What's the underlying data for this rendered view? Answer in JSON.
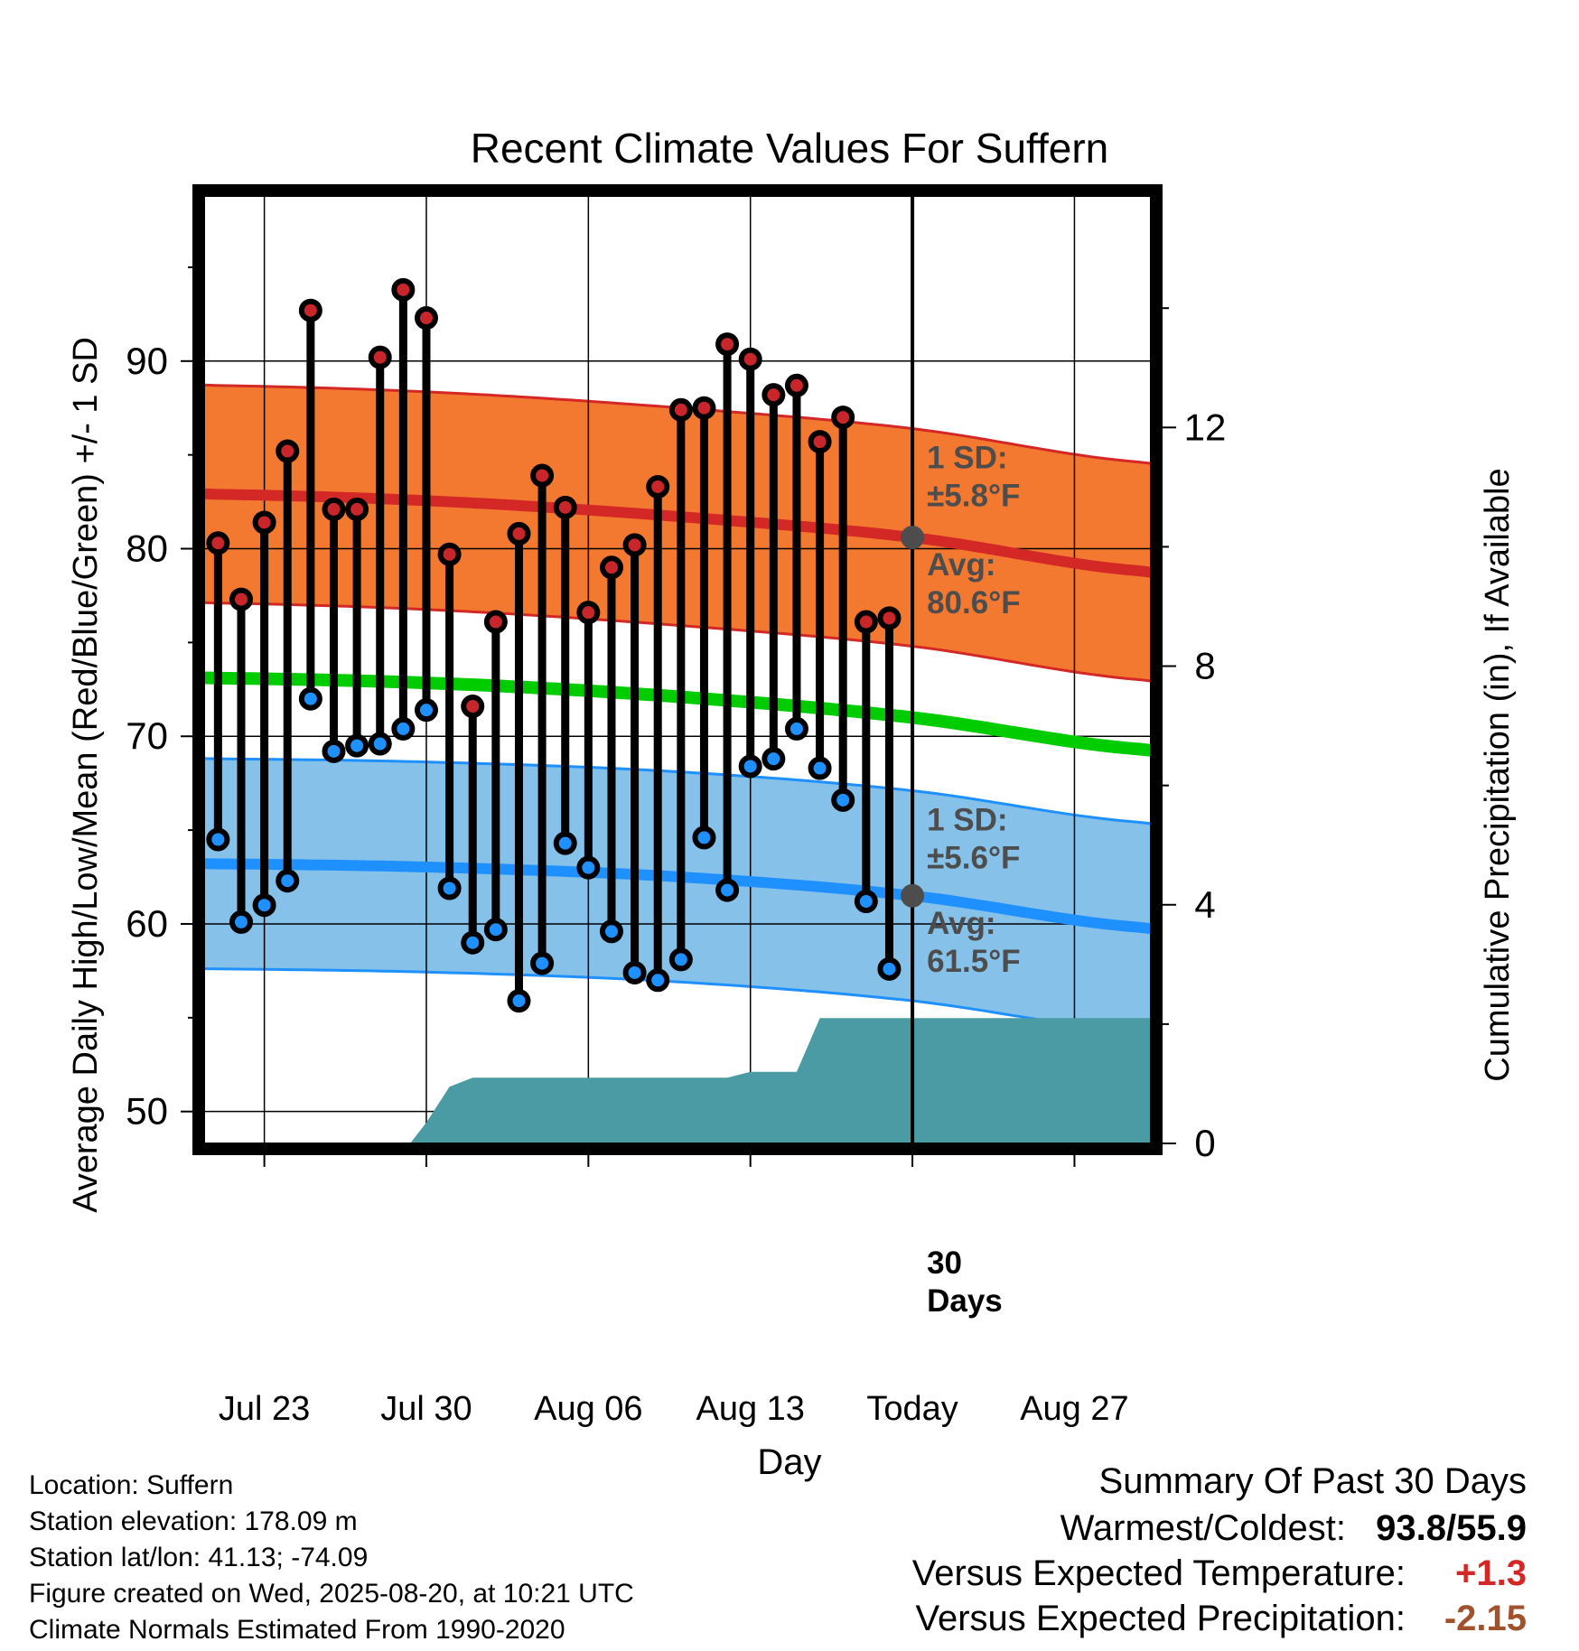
{
  "title": "Recent Climate Values For Suffern",
  "chart_data": {
    "type": "line",
    "title": "Recent Climate Values For Suffern",
    "xlabel": "Day",
    "ylabel": "Average Daily High/Low/Mean (Red/Blue/Green) +/- 1 SD",
    "y2label": "Cumulative Precipitation (in), If Available",
    "ylim": [
      48.3,
      98.8
    ],
    "y2lim": [
      0,
      15.88
    ],
    "yticks": [
      50,
      60,
      70,
      80,
      90
    ],
    "y2ticks": [
      0,
      4,
      8,
      12
    ],
    "xlim": [
      -0.6,
      40.3
    ],
    "xticks": [
      {
        "x": 2,
        "label": "Jul 23"
      },
      {
        "x": 9,
        "label": "Jul 30"
      },
      {
        "x": 16,
        "label": "Aug 06"
      },
      {
        "x": 23,
        "label": "Aug 13"
      },
      {
        "x": 30,
        "label": "Today"
      },
      {
        "x": 37,
        "label": "Aug 27"
      }
    ],
    "today_x": 30,
    "dates": [
      "Jul 21",
      "Jul 22",
      "Jul 23",
      "Jul 24",
      "Jul 25",
      "Jul 26",
      "Jul 27",
      "Jul 28",
      "Jul 29",
      "Jul 30",
      "Jul 31",
      "Aug 01",
      "Aug 02",
      "Aug 03",
      "Aug 04",
      "Aug 05",
      "Aug 06",
      "Aug 07",
      "Aug 08",
      "Aug 09",
      "Aug 10",
      "Aug 11",
      "Aug 12",
      "Aug 13",
      "Aug 14",
      "Aug 15",
      "Aug 16",
      "Aug 17",
      "Aug 18",
      "Aug 19"
    ],
    "daily_high": [
      80.3,
      77.3,
      81.4,
      85.2,
      92.7,
      82.1,
      82.1,
      90.2,
      93.8,
      92.3,
      79.7,
      71.6,
      76.1,
      80.8,
      83.9,
      82.2,
      76.6,
      79.0,
      80.2,
      83.3,
      87.4,
      87.5,
      90.9,
      90.1,
      88.2,
      88.7,
      85.7,
      87.0,
      76.1,
      76.3
    ],
    "daily_low": [
      64.5,
      60.1,
      61.0,
      62.3,
      72.0,
      69.2,
      69.5,
      69.6,
      70.4,
      71.4,
      61.9,
      59.0,
      59.7,
      55.9,
      57.9,
      64.3,
      63.0,
      59.6,
      57.4,
      57.0,
      58.1,
      64.6,
      61.8,
      68.4,
      68.8,
      70.4,
      68.3,
      66.6,
      61.2,
      57.6
    ],
    "normal_x": [
      0,
      10,
      20,
      30,
      40
    ],
    "normal_high": [
      82.9,
      82.5,
      81.7,
      80.6,
      78.8
    ],
    "normal_low": [
      63.2,
      63.0,
      62.5,
      61.5,
      59.8
    ],
    "normal_mean": [
      73.1,
      72.8,
      72.1,
      71.0,
      69.3
    ],
    "high_sd": 5.8,
    "low_sd": 5.6,
    "precip_cumulative": {
      "x": [
        0,
        8.3,
        9.0,
        10.0,
        11.0,
        22.0,
        23.0,
        25.0,
        26.0,
        40.3
      ],
      "y": [
        0,
        0,
        0.35,
        0.95,
        1.1,
        1.1,
        1.2,
        1.2,
        2.1,
        2.1
      ]
    },
    "annotations": {
      "high_sd_label": "1 SD:",
      "high_sd_value": "±5.8°F",
      "high_avg_label": "Avg:",
      "high_avg_value": "80.6°F",
      "low_sd_label": "1 SD:",
      "low_sd_value": "±5.6°F",
      "low_avg_label": "Avg:",
      "low_avg_value": "61.5°F",
      "days_label": "30",
      "days_label2": "Days"
    },
    "colors": {
      "high_band": "#f47930",
      "high_line": "#d32826",
      "low_band": "#85c1e9",
      "low_line": "#1e90ff",
      "mean_line": "#00cc00",
      "precip": "#4a9ba4",
      "high_dot": "#c8262b",
      "low_dot": "#1e90ff",
      "avg_marker": "#4d4d4d"
    }
  },
  "info": {
    "location": "Location: Suffern",
    "elevation": "Station elevation: 178.09 m",
    "latlon": "Station lat/lon: 41.13; -74.09",
    "created": "Figure created on Wed, 2025-08-20, at 10:21 UTC",
    "normals": "Climate Normals Estimated From 1990-2020"
  },
  "summary": {
    "heading": "Summary Of Past 30 Days",
    "warm_cold_label": "Warmest/Coldest:",
    "warm_cold_value": "93.8/55.9",
    "temp_label": "Versus Expected Temperature:",
    "temp_value": "+1.3",
    "temp_color": "#d32826",
    "precip_label": "Versus Expected Precipitation:",
    "precip_value": "-2.15",
    "precip_color": "#a0522d"
  }
}
